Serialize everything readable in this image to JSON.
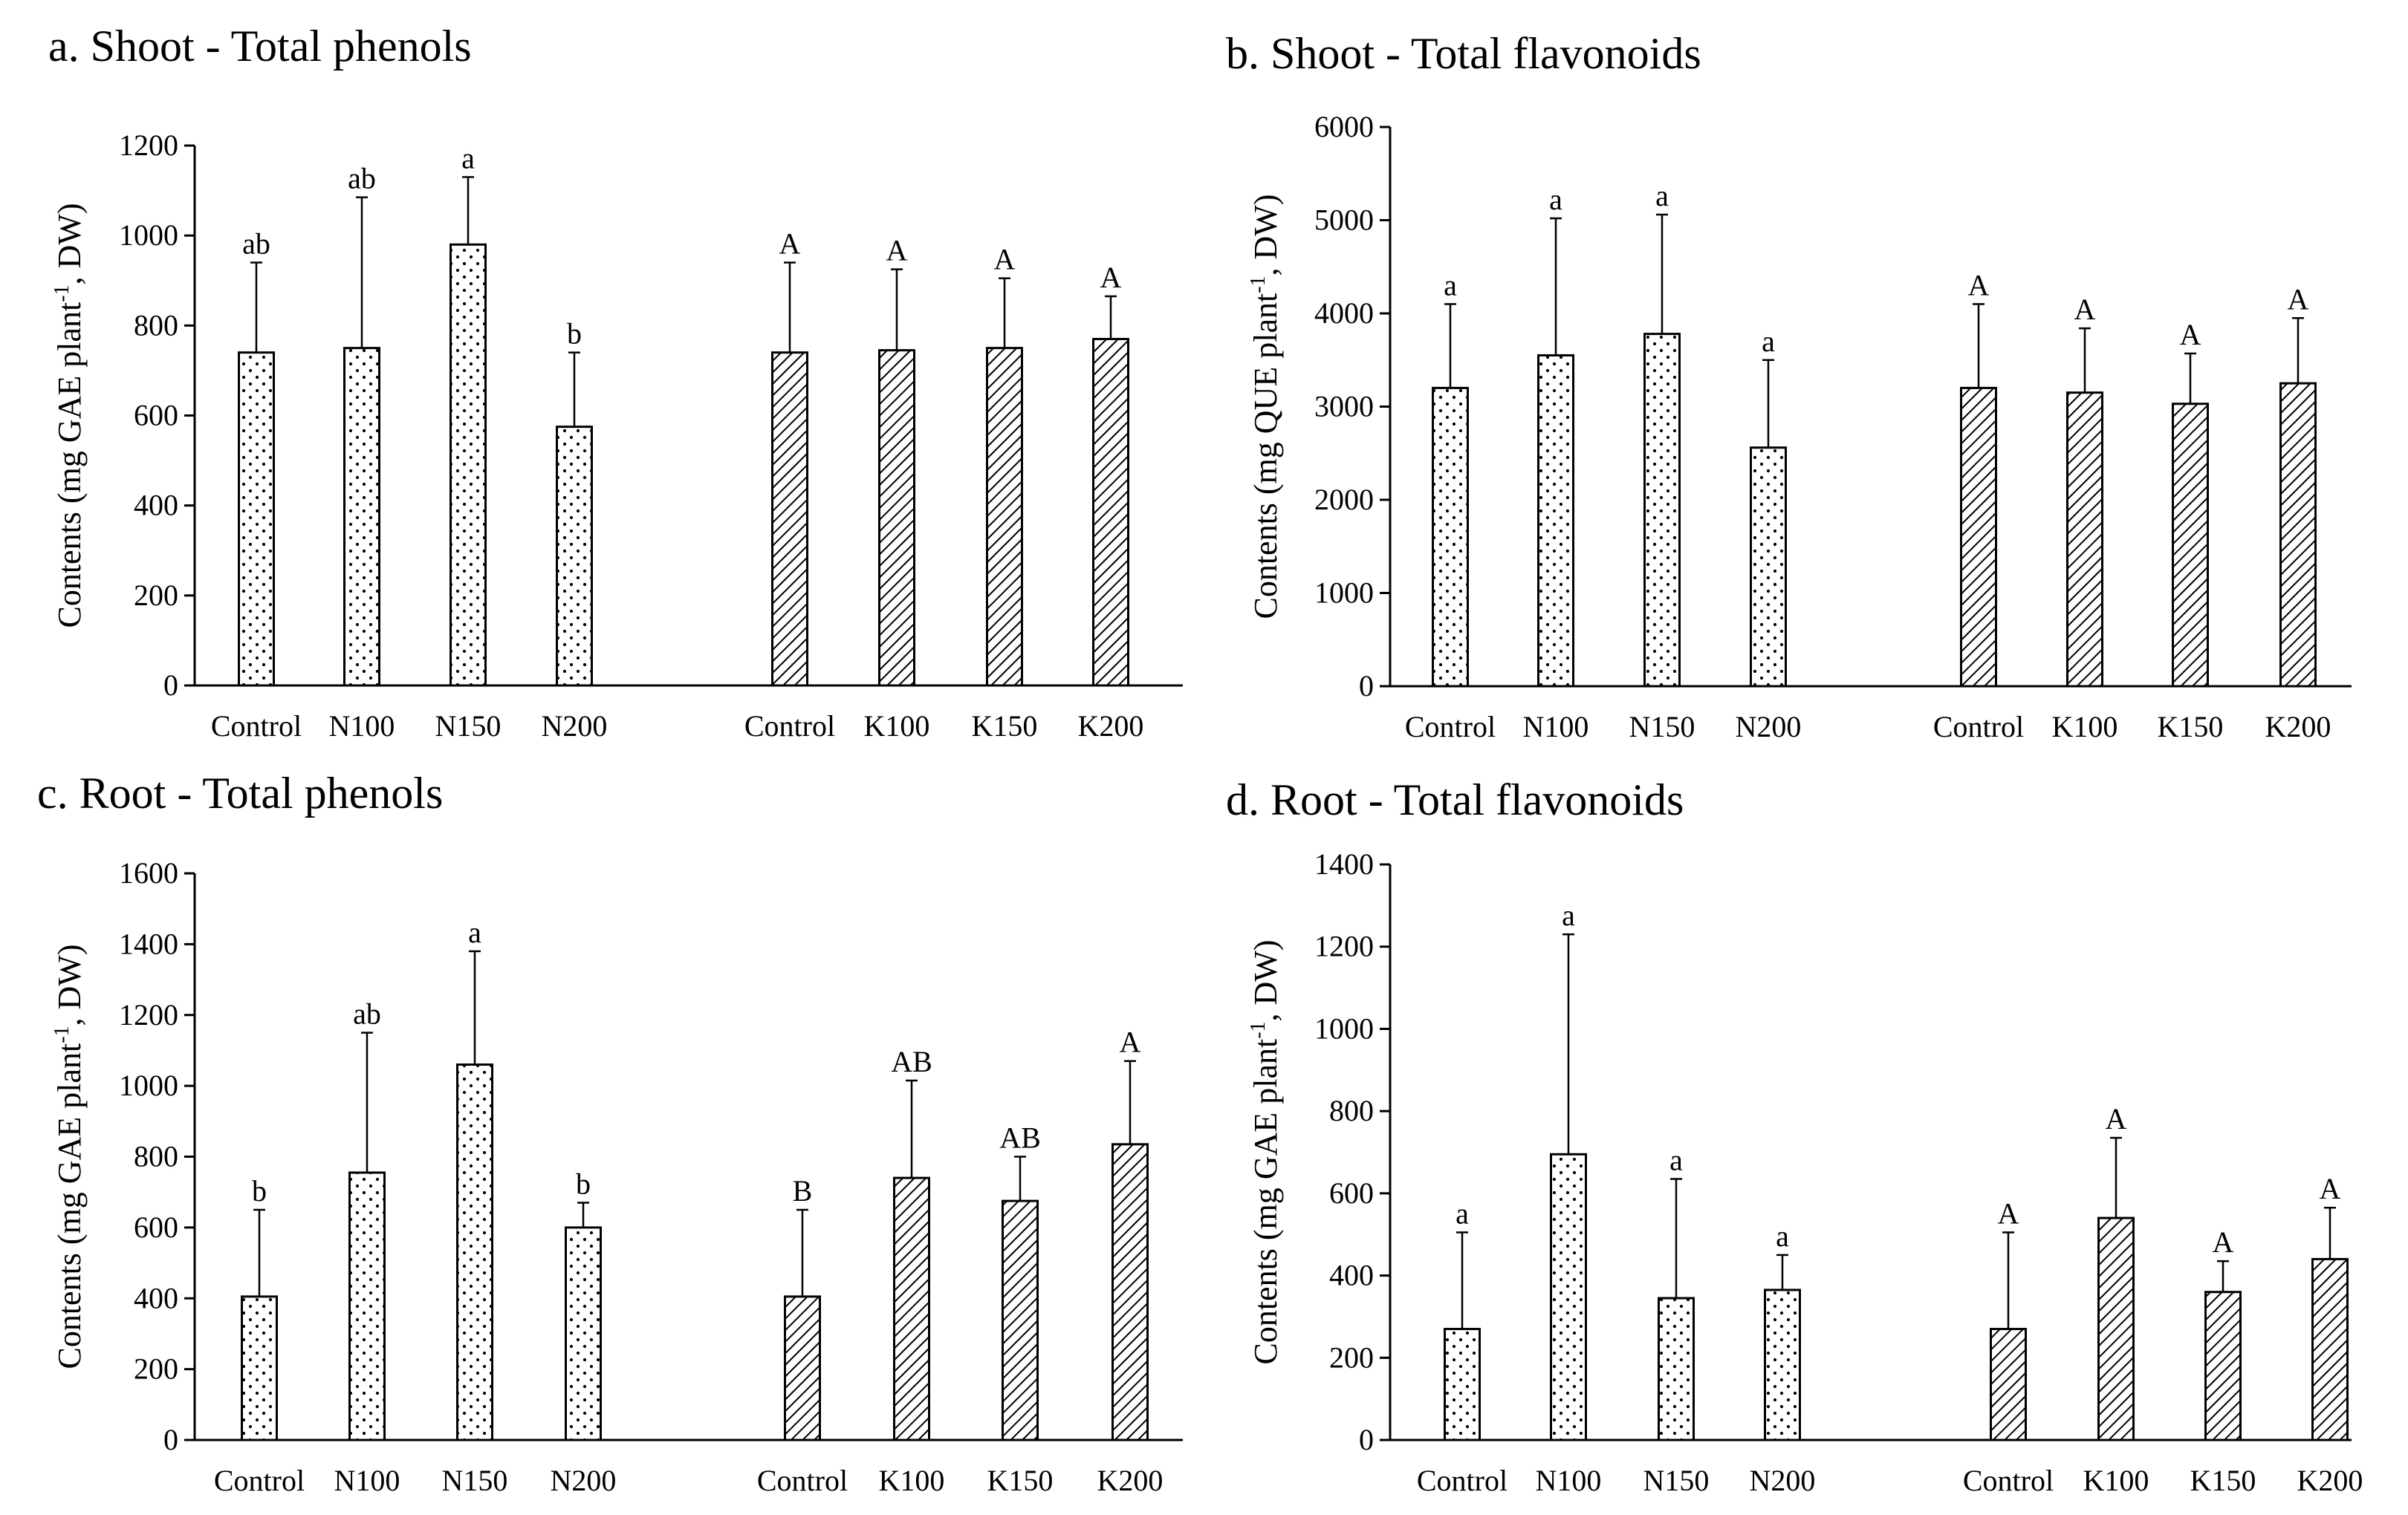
{
  "chart_data": [
    {
      "type": "bar",
      "panel": "a",
      "title": "a. Shoot - Total phenols",
      "ylabel_main": "Contents (mg GAE plant",
      "ylabel_sup": "-1",
      "ylabel_tail": ", DW)",
      "ylim": [
        0,
        1200
      ],
      "yticks": [
        0,
        200,
        400,
        600,
        800,
        1000,
        1200
      ],
      "grid": false,
      "series": [
        {
          "name": "N",
          "pattern": "dots",
          "categories": [
            "Control",
            "N100",
            "N150",
            "N200"
          ],
          "values": [
            740,
            750,
            980,
            575
          ],
          "errors": [
            200,
            335,
            150,
            165
          ],
          "letters": [
            "ab",
            "ab",
            "a",
            "b"
          ]
        },
        {
          "name": "K",
          "pattern": "hatch",
          "categories": [
            "Control",
            "K100",
            "K150",
            "K200"
          ],
          "values": [
            740,
            745,
            750,
            770
          ],
          "errors": [
            200,
            180,
            155,
            95
          ],
          "letters": [
            "A",
            "A",
            "A",
            "A"
          ]
        }
      ]
    },
    {
      "type": "bar",
      "panel": "b",
      "title": "b. Shoot - Total flavonoids",
      "ylabel_main": "Contents (mg QUE plant",
      "ylabel_sup": "-1",
      "ylabel_tail": ", DW)",
      "ylim": [
        0,
        6000
      ],
      "yticks": [
        0,
        1000,
        2000,
        3000,
        4000,
        5000,
        6000
      ],
      "grid": false,
      "series": [
        {
          "name": "N",
          "pattern": "dots",
          "categories": [
            "Control",
            "N100",
            "N150",
            "N200"
          ],
          "values": [
            3200,
            3550,
            3780,
            2560
          ],
          "errors": [
            900,
            1470,
            1280,
            940
          ],
          "letters": [
            "a",
            "a",
            "a",
            "a"
          ]
        },
        {
          "name": "K",
          "pattern": "hatch",
          "categories": [
            "Control",
            "K100",
            "K150",
            "K200"
          ],
          "values": [
            3200,
            3150,
            3030,
            3250
          ],
          "errors": [
            900,
            690,
            540,
            700
          ],
          "letters": [
            "A",
            "A",
            "A",
            "A"
          ]
        }
      ]
    },
    {
      "type": "bar",
      "panel": "c",
      "title": "c. Root - Total phenols",
      "ylabel_main": "Contents (mg GAE plant",
      "ylabel_sup": "-1",
      "ylabel_tail": ", DW)",
      "ylim": [
        0,
        1600
      ],
      "yticks": [
        0,
        200,
        400,
        600,
        800,
        1000,
        1200,
        1400,
        1600
      ],
      "grid": false,
      "series": [
        {
          "name": "N",
          "pattern": "dots",
          "categories": [
            "Control",
            "N100",
            "N150",
            "N200"
          ],
          "values": [
            405,
            755,
            1060,
            600
          ],
          "errors": [
            245,
            395,
            320,
            70
          ],
          "letters": [
            "b",
            "ab",
            "a",
            "b"
          ]
        },
        {
          "name": "K",
          "pattern": "hatch",
          "categories": [
            "Control",
            "K100",
            "K150",
            "K200"
          ],
          "values": [
            405,
            740,
            675,
            835
          ],
          "errors": [
            245,
            275,
            125,
            235
          ],
          "letters": [
            "B",
            "AB",
            "AB",
            "A"
          ]
        }
      ]
    },
    {
      "type": "bar",
      "panel": "d",
      "title": "d. Root - Total flavonoids",
      "ylabel_main": "Contents (mg GAE plant",
      "ylabel_sup": "-1",
      "ylabel_tail": ", DW)",
      "ylim": [
        0,
        1400
      ],
      "yticks": [
        0,
        200,
        400,
        600,
        800,
        1000,
        1200,
        1400
      ],
      "grid": false,
      "series": [
        {
          "name": "N",
          "pattern": "dots",
          "categories": [
            "Control",
            "N100",
            "N150",
            "N200"
          ],
          "values": [
            270,
            695,
            345,
            365
          ],
          "errors": [
            235,
            535,
            290,
            85
          ],
          "letters": [
            "a",
            "a",
            "a",
            "a"
          ]
        },
        {
          "name": "K",
          "pattern": "hatch",
          "categories": [
            "Control",
            "K100",
            "K150",
            "K200"
          ],
          "values": [
            270,
            540,
            360,
            440
          ],
          "errors": [
            235,
            195,
            75,
            125
          ],
          "letters": [
            "A",
            "A",
            "A",
            "A"
          ]
        }
      ]
    }
  ]
}
